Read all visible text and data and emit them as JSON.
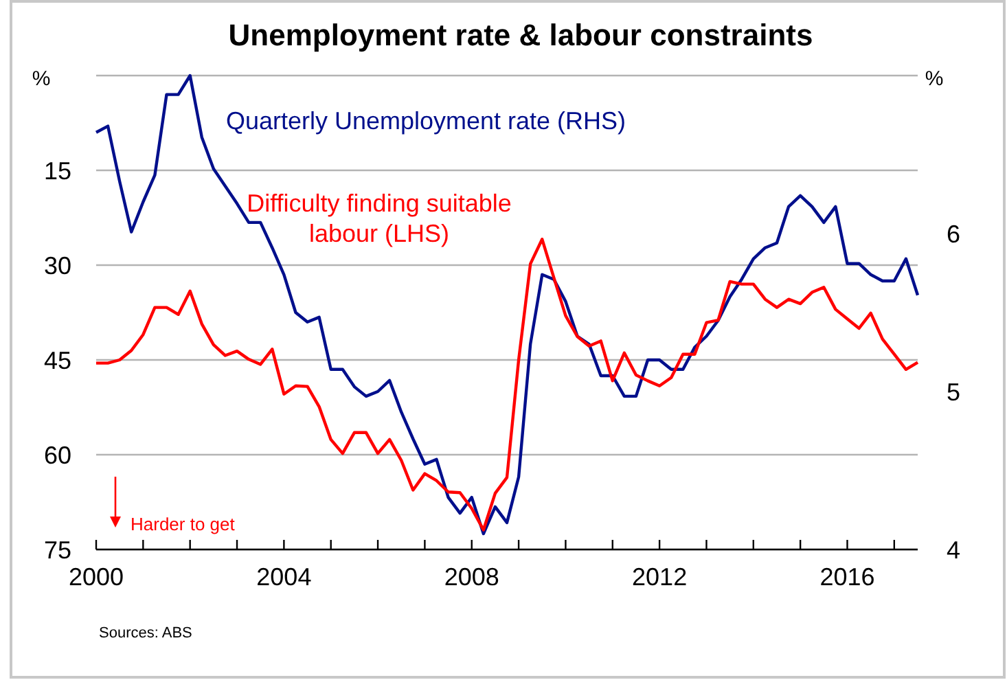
{
  "chart_data": {
    "type": "line",
    "title": "Unemployment rate & labour constraints",
    "ylabel": "%",
    "y2label": "%",
    "x": [
      2000,
      2000.25,
      2000.5,
      2000.75,
      2001,
      2001.25,
      2001.5,
      2001.75,
      2002,
      2002.25,
      2002.5,
      2002.75,
      2003,
      2003.25,
      2003.5,
      2003.75,
      2004,
      2004.25,
      2004.5,
      2004.75,
      2005,
      2005.25,
      2005.5,
      2005.75,
      2006,
      2006.25,
      2006.5,
      2006.75,
      2007,
      2007.25,
      2007.5,
      2007.75,
      2008,
      2008.25,
      2008.5,
      2008.75,
      2009,
      2009.25,
      2009.5,
      2009.75,
      2010,
      2010.25,
      2010.5,
      2010.75,
      2011,
      2011.25,
      2011.5,
      2011.75,
      2012,
      2012.25,
      2012.5,
      2012.75,
      2013,
      2013.25,
      2013.5,
      2013.75,
      2014,
      2014.25,
      2014.5,
      2014.75,
      2015,
      2015.25,
      2015.5,
      2015.75,
      2016,
      2016.25,
      2016.5,
      2016.75,
      2017,
      2017.25,
      2017.5
    ],
    "series": [
      {
        "name": "Quarterly Unemployment rate (RHS)",
        "color": "#000f8c",
        "axis": "y2",
        "values": [
          6.64,
          6.68,
          6.33,
          6.01,
          6.2,
          6.37,
          6.88,
          6.88,
          7.0,
          6.61,
          6.41,
          6.3,
          6.19,
          6.07,
          6.07,
          5.91,
          5.74,
          5.5,
          5.44,
          5.47,
          5.14,
          5.14,
          5.03,
          4.97,
          5.0,
          5.07,
          4.87,
          4.7,
          4.54,
          4.57,
          4.33,
          4.23,
          4.33,
          4.1,
          4.27,
          4.17,
          4.46,
          5.3,
          5.74,
          5.71,
          5.57,
          5.35,
          5.3,
          5.1,
          5.1,
          4.97,
          4.97,
          5.2,
          5.2,
          5.14,
          5.14,
          5.28,
          5.35,
          5.45,
          5.6,
          5.71,
          5.84,
          5.91,
          5.94,
          6.17,
          6.24,
          6.17,
          6.07,
          6.17,
          5.81,
          5.81,
          5.74,
          5.7,
          5.7,
          5.84,
          5.61
        ]
      },
      {
        "name": "Difficulty finding suitable labour (LHS)",
        "color": "#ff0000",
        "values": [
          45.5,
          45.5,
          45,
          43.5,
          41,
          36.7,
          36.7,
          37.8,
          34.1,
          39.3,
          42.6,
          44.3,
          43.6,
          44.9,
          45.7,
          43.3,
          50.4,
          49.1,
          49.2,
          52.4,
          57.6,
          59.8,
          56.5,
          56.5,
          59.8,
          57.6,
          60.9,
          65.6,
          63,
          64.1,
          65.9,
          66,
          68.5,
          71.9,
          66.1,
          63.6,
          45,
          29.8,
          25.9,
          32,
          38,
          41.3,
          42.8,
          42,
          48.3,
          43.9,
          47.4,
          48.3,
          49.1,
          47.8,
          44.1,
          44.1,
          39.1,
          38.7,
          32.6,
          33,
          33,
          35.4,
          36.7,
          35.4,
          36.1,
          34.3,
          33.5,
          37,
          38.5,
          40,
          37.6,
          41.7,
          44.1,
          46.5,
          45.4
        ]
      }
    ],
    "xlim": [
      2000,
      2017.5
    ],
    "xticks": [
      2000,
      {
        "value": 2001,
        "label": null
      },
      {
        "value": 2002,
        "label": null
      },
      {
        "value": 2003,
        "label": null
      },
      2004,
      {
        "value": 2005,
        "label": null
      },
      {
        "value": 2006,
        "label": null
      },
      {
        "value": 2007,
        "label": null
      },
      2008,
      {
        "value": 2009,
        "label": null
      },
      {
        "value": 2010,
        "label": null
      },
      {
        "value": 2011,
        "label": null
      },
      2012,
      {
        "value": 2013,
        "label": null
      },
      {
        "value": 2014,
        "label": null
      },
      {
        "value": 2015,
        "label": null
      },
      2016,
      {
        "value": 2017,
        "label": null
      }
    ],
    "ylim": [
      75,
      0
    ],
    "yticks": [
      {
        "value": 0,
        "label": null
      },
      15,
      30,
      45,
      60,
      75
    ],
    "y2lim": [
      4,
      7
    ],
    "y2ticks": [
      4,
      5,
      6
    ],
    "grid": "y",
    "legend": false,
    "line_style": "solid",
    "marker": "none",
    "annotations": [
      "Harder to get",
      "Sources: ABS"
    ]
  }
}
